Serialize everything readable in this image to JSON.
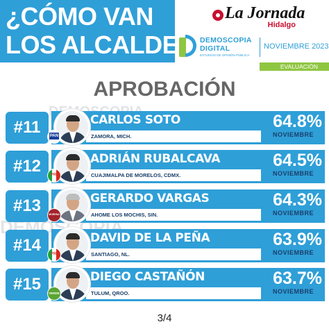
{
  "header": {
    "title_line1": "¿CÓMO VAN",
    "title_line2": "LOS ALCALDES?",
    "brand_logo": "La Jornada",
    "brand_region": "Hidalgo",
    "pollster_line1": "DEMOSCOPIA",
    "pollster_line2": "DIGITAL",
    "pollster_tagline": "ESTUDIOS DE OPINIÓN PÚBLICA",
    "pollster_date": "NOVIEMBRE 2023",
    "badge": "EVALUACIÓN"
  },
  "section_title": "APROBACIÓN",
  "watermark": "DEMOSCOPIA",
  "accent_color": "#2f9fd8",
  "accent_green": "#8fc641",
  "ranking": [
    {
      "rank": "#11",
      "name": "CARLOS SOTO",
      "location": "ZAMORA, MICH.",
      "approval": "64.8%",
      "month": "NOVIEMBRE",
      "party": "PAN",
      "party_icon": "pan-logo-icon"
    },
    {
      "rank": "#12",
      "name": "ADRIÁN RUBALCAVA",
      "location": "CUAJIMALPA DE MORELOS, CDMX.",
      "approval": "64.5%",
      "month": "NOVIEMBRE",
      "party": "PRI",
      "party_icon": "pri-logo-icon"
    },
    {
      "rank": "#13",
      "name": "GERARDO VARGAS",
      "location": "AHOME LOS MOCHIS, SIN.",
      "approval": "64.3%",
      "month": "NOVIEMBRE",
      "party": "MORENA",
      "party_icon": "morena-logo-icon"
    },
    {
      "rank": "#14",
      "name": "DAVID DE LA PEÑA",
      "location": "SANTIAGO, NL.",
      "approval": "63.9%",
      "month": "NOVIEMBRE",
      "party": "PRI",
      "party_icon": "pri-logo-icon"
    },
    {
      "rank": "#15",
      "name": "DIEGO CASTAÑÓN",
      "location": "TULUM, QROO.",
      "approval": "63.7%",
      "month": "NOVIEMBRE",
      "party": "VERDE",
      "party_icon": "pvem-logo-icon"
    }
  ],
  "page_indicator": "3/4"
}
